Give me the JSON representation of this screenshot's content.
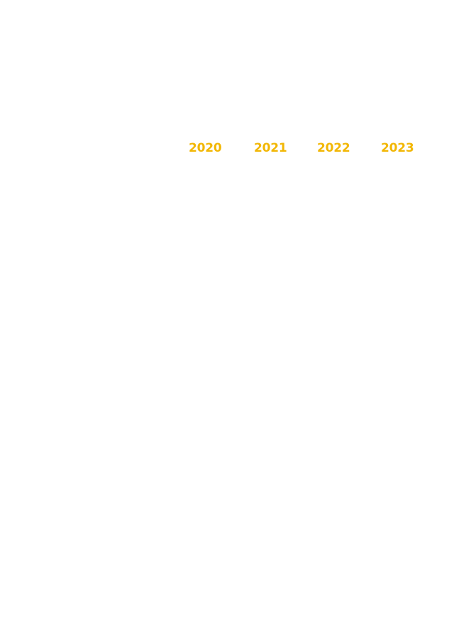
{
  "year_tabs": {
    "accent_color": "#F2B705",
    "items": [
      {
        "label": "2020"
      },
      {
        "label": "2021"
      },
      {
        "label": "2022"
      },
      {
        "label": "2023"
      }
    ]
  }
}
